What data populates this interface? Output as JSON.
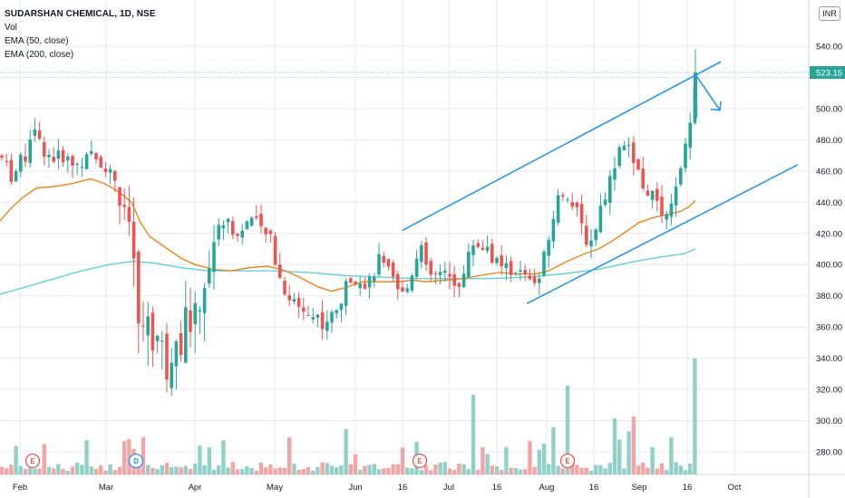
{
  "legend": {
    "title": "SUDARSHAN CHEMICAL, 1D, NSE",
    "vol": "Vol",
    "ema50": "EMA (50, close)",
    "ema200": "EMA (200, close)"
  },
  "currency_badge": "INR",
  "last_price_label": "523.15",
  "colors": {
    "up": "#26a69a",
    "down": "#ef5350",
    "ema50": "#f57c00",
    "ema200": "#4dd0e1",
    "trendline": "#2196f3",
    "grid": "#e6e9ee",
    "vol_up": "#8fd0c7",
    "vol_down": "#f3a5a3",
    "price_tag": "#26a69a"
  },
  "chart_data": {
    "type": "candlestick",
    "x_tick_labels": [
      "Feb",
      "Mar",
      "Apr",
      "May",
      "Jun",
      "16",
      "Jul",
      "16",
      "Aug",
      "16",
      "Sep",
      "16",
      "Oct"
    ],
    "y_tick_labels": [
      "280.00",
      "300.00",
      "320.00",
      "340.00",
      "360.00",
      "380.00",
      "400.00",
      "420.00",
      "440.00",
      "460.00",
      "480.00",
      "500.00",
      "520.00",
      "540.00"
    ],
    "ylim": [
      268,
      556
    ],
    "last_price": 523.15,
    "series": [
      {
        "name": "EMA (50, close)",
        "values_note": "",
        "points": [
          [
            0,
            428
          ],
          [
            12,
            436
          ],
          [
            25,
            443
          ],
          [
            40,
            449
          ],
          [
            60,
            450
          ],
          [
            80,
            452
          ],
          [
            100,
            455
          ],
          [
            115,
            452
          ],
          [
            130,
            447
          ],
          [
            145,
            440
          ],
          [
            155,
            427
          ],
          [
            165,
            418
          ],
          [
            180,
            412
          ],
          [
            200,
            404
          ],
          [
            215,
            400
          ],
          [
            235,
            397
          ],
          [
            255,
            396
          ],
          [
            275,
            398
          ],
          [
            295,
            399
          ],
          [
            315,
            396
          ],
          [
            330,
            392
          ],
          [
            350,
            386
          ],
          [
            365,
            383
          ],
          [
            380,
            385
          ],
          [
            400,
            389
          ],
          [
            420,
            389
          ],
          [
            440,
            389
          ],
          [
            455,
            390
          ],
          [
            470,
            389
          ],
          [
            490,
            390
          ],
          [
            510,
            391
          ],
          [
            530,
            393
          ],
          [
            550,
            395
          ],
          [
            570,
            394
          ],
          [
            590,
            394
          ],
          [
            605,
            396
          ],
          [
            625,
            402
          ],
          [
            645,
            407
          ],
          [
            660,
            410
          ],
          [
            675,
            415
          ],
          [
            690,
            421
          ],
          [
            705,
            427
          ],
          [
            720,
            430
          ],
          [
            735,
            432
          ],
          [
            750,
            434
          ],
          [
            760,
            437
          ],
          [
            767,
            441
          ]
        ]
      },
      {
        "name": "EMA (200, close)",
        "values_note": "",
        "points": [
          [
            0,
            381
          ],
          [
            30,
            386
          ],
          [
            60,
            391
          ],
          [
            90,
            396
          ],
          [
            120,
            400
          ],
          [
            145,
            402
          ],
          [
            170,
            401
          ],
          [
            200,
            398
          ],
          [
            230,
            396
          ],
          [
            260,
            396
          ],
          [
            300,
            396
          ],
          [
            340,
            395
          ],
          [
            380,
            393
          ],
          [
            420,
            392
          ],
          [
            460,
            391
          ],
          [
            500,
            391
          ],
          [
            540,
            391
          ],
          [
            580,
            392
          ],
          [
            620,
            394
          ],
          [
            660,
            397
          ],
          [
            700,
            402
          ],
          [
            730,
            405
          ],
          [
            755,
            407
          ],
          [
            767,
            410
          ]
        ]
      }
    ],
    "annotations": {
      "upper_channel": [
        [
          444,
          422
        ],
        [
          795,
          530
        ]
      ],
      "lower_channel": [
        [
          581,
          375
        ],
        [
          880,
          464
        ]
      ],
      "arrow": [
        [
          767,
          522
        ],
        [
          794,
          499
        ]
      ],
      "event_markers": [
        {
          "label": "E",
          "x_index": 36
        },
        {
          "label": "D",
          "x_index": 150
        },
        {
          "label": "E",
          "x_index": 463
        },
        {
          "label": "E",
          "x_index": 626
        }
      ]
    }
  }
}
